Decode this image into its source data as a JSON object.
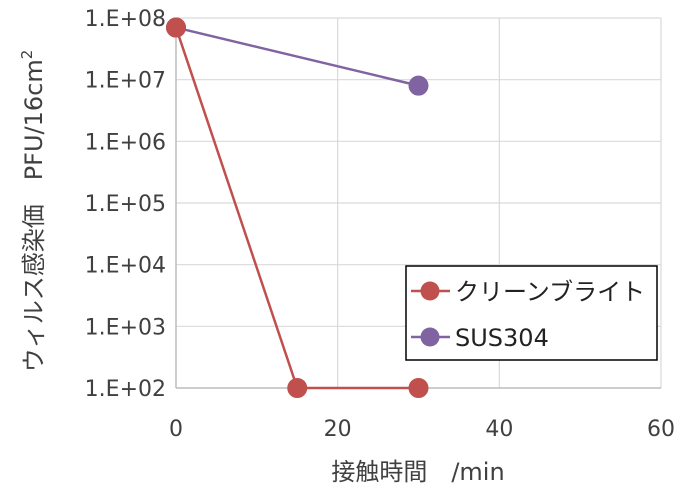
{
  "chart_data": {
    "type": "line",
    "title": "",
    "xlabel": "接触時間　/min",
    "ylabel": "ウィルス感染価　PFU/16cm",
    "ylabel_superscript": "2",
    "x_ticks": [
      "0",
      "20",
      "40",
      "60"
    ],
    "xlim": [
      0,
      60
    ],
    "y_scale": "log",
    "y_ticks": [
      "1.E+08",
      "1.E+07",
      "1.E+06",
      "1.E+05",
      "1.E+04",
      "1.E+03",
      "1.E+02"
    ],
    "ylim": [
      100,
      100000000
    ],
    "grid": true,
    "legend_position": "bottom-right",
    "series": [
      {
        "name": "クリーンブライト",
        "color": "#c0504d",
        "x": [
          0,
          15,
          30
        ],
        "y": [
          70000000,
          100,
          100
        ]
      },
      {
        "name": "SUS304",
        "color": "#8064a2",
        "x": [
          0,
          30
        ],
        "y": [
          70000000,
          8000000
        ]
      }
    ]
  }
}
